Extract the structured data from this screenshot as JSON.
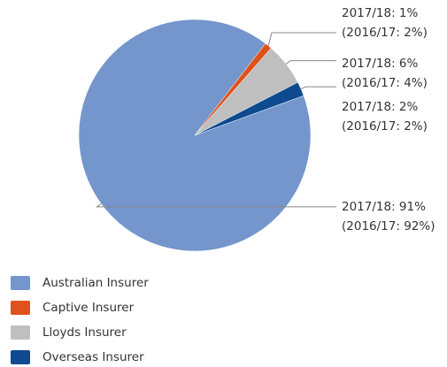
{
  "chart_data": {
    "type": "pie",
    "categories": [
      "Australian Insurer",
      "Captive Insurer",
      "Lloyds Insurer",
      "Overseas Insurer"
    ],
    "values": [
      91,
      1,
      6,
      2
    ],
    "value_labels": [
      "2017/18: 91%",
      "2017/18: 1%",
      "2017/18: 6%",
      "2017/18: 2%"
    ],
    "prior_value_labels": [
      "(2016/17: 92%)",
      "(2016/17: 2%)",
      "(2016/17: 4%)",
      "(2016/17: 2%)"
    ],
    "colors": [
      "#7496cc",
      "#e0521b",
      "#bfbfbf",
      "#0d4a8f"
    ],
    "legend": "bottom-left"
  }
}
